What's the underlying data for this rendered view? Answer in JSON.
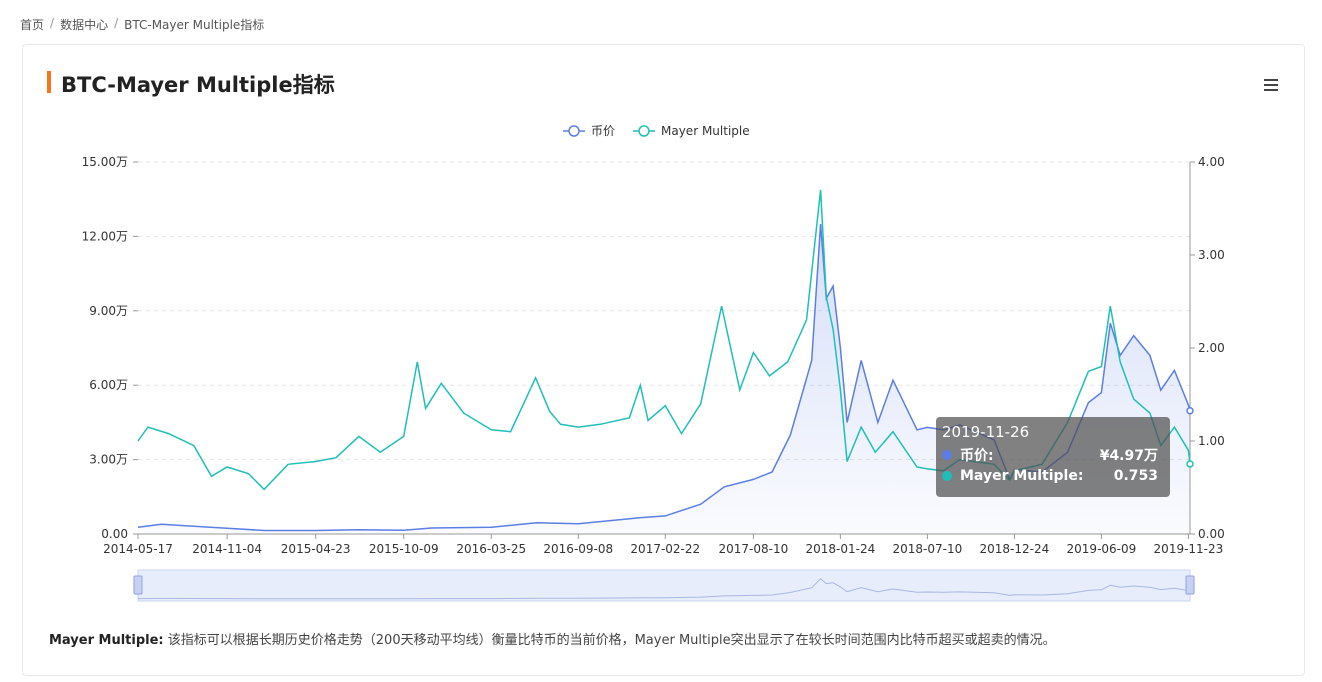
{
  "breadcrumb": {
    "items": [
      "首页",
      "数据中心",
      "BTC-Mayer Multiple指标"
    ],
    "separator": "/"
  },
  "card": {
    "title": "BTC-Mayer Multiple指标",
    "accent_color": "#f7761b",
    "menu_icon": "hamburger-menu-icon"
  },
  "tooltip": {
    "date": "2019-11-26",
    "rows": [
      {
        "label": "币价:",
        "value": "¥4.97万",
        "color": "#5b7ee5"
      },
      {
        "label": "Mayer Multiple:",
        "value": "0.753",
        "color": "#1fbfb8"
      }
    ]
  },
  "description": {
    "label": "Mayer Multiple:",
    "text": "该指标可以根据长期历史价格走势（200天移动平均线）衡量比特币的当前价格，Mayer Multiple突出显示了在较长时间范围内比特币超买或超卖的情况。"
  },
  "chart_data": {
    "type": "line",
    "legend": [
      {
        "name": "币价",
        "color": "#5b7ee5"
      },
      {
        "name": "Mayer Multiple",
        "color": "#1fbfb8"
      }
    ],
    "legend_position": "top-center",
    "grid": true,
    "x_tick_labels": [
      "2014-05-17",
      "2014-11-04",
      "2015-04-23",
      "2015-10-09",
      "2016-03-25",
      "2016-09-08",
      "2017-02-22",
      "2017-08-10",
      "2018-01-24",
      "2018-07-10",
      "2018-12-24",
      "2019-06-09",
      "2019-11-23"
    ],
    "y_left": {
      "ticks": [
        "0.00",
        "3.00万",
        "6.00万",
        "9.00万",
        "12.00万",
        "15.00万"
      ],
      "range": [
        0,
        150000
      ]
    },
    "y_right": {
      "ticks": [
        "0.00",
        "1.00",
        "2.00",
        "3.00",
        "4.00"
      ],
      "range": [
        0,
        4
      ]
    },
    "x_range": [
      "2014-05-17",
      "2019-11-26"
    ],
    "series": [
      {
        "name": "币价",
        "axis": "left",
        "color": "#5b7ee5",
        "area": true,
        "points": [
          [
            "2014-05-17",
            2700
          ],
          [
            "2014-07-01",
            3900
          ],
          [
            "2014-09-01",
            3100
          ],
          [
            "2014-11-04",
            2300
          ],
          [
            "2015-01-15",
            1400
          ],
          [
            "2015-04-23",
            1400
          ],
          [
            "2015-07-15",
            1700
          ],
          [
            "2015-10-09",
            1500
          ],
          [
            "2015-12-01",
            2400
          ],
          [
            "2016-03-25",
            2700
          ],
          [
            "2016-06-20",
            4500
          ],
          [
            "2016-09-08",
            4100
          ],
          [
            "2016-12-31",
            6500
          ],
          [
            "2017-02-22",
            7300
          ],
          [
            "2017-05-01",
            12000
          ],
          [
            "2017-06-15",
            19000
          ],
          [
            "2017-08-10",
            22000
          ],
          [
            "2017-09-15",
            25000
          ],
          [
            "2017-10-20",
            40000
          ],
          [
            "2017-11-30",
            70000
          ],
          [
            "2017-12-17",
            125000
          ],
          [
            "2017-12-28",
            95000
          ],
          [
            "2018-01-10",
            100000
          ],
          [
            "2018-01-24",
            75000
          ],
          [
            "2018-02-06",
            45000
          ],
          [
            "2018-03-05",
            70000
          ],
          [
            "2018-04-06",
            45000
          ],
          [
            "2018-05-05",
            62000
          ],
          [
            "2018-06-20",
            42000
          ],
          [
            "2018-07-10",
            43000
          ],
          [
            "2018-08-10",
            42000
          ],
          [
            "2018-09-10",
            44000
          ],
          [
            "2018-11-15",
            38000
          ],
          [
            "2018-12-15",
            22000
          ],
          [
            "2018-12-24",
            26000
          ],
          [
            "2019-02-15",
            25000
          ],
          [
            "2019-04-05",
            33000
          ],
          [
            "2019-05-15",
            53000
          ],
          [
            "2019-06-09",
            57000
          ],
          [
            "2019-06-26",
            85000
          ],
          [
            "2019-07-15",
            72000
          ],
          [
            "2019-08-10",
            80000
          ],
          [
            "2019-09-10",
            72000
          ],
          [
            "2019-10-01",
            58000
          ],
          [
            "2019-10-27",
            66000
          ],
          [
            "2019-11-23",
            52000
          ],
          [
            "2019-11-26",
            49700
          ]
        ]
      },
      {
        "name": "Mayer Multiple",
        "axis": "right",
        "color": "#1fbfb8",
        "area": false,
        "points": [
          [
            "2014-05-17",
            1.0
          ],
          [
            "2014-06-05",
            1.15
          ],
          [
            "2014-07-15",
            1.08
          ],
          [
            "2014-09-01",
            0.95
          ],
          [
            "2014-10-05",
            0.62
          ],
          [
            "2014-11-04",
            0.72
          ],
          [
            "2014-12-15",
            0.65
          ],
          [
            "2015-01-14",
            0.48
          ],
          [
            "2015-03-01",
            0.75
          ],
          [
            "2015-04-23",
            0.78
          ],
          [
            "2015-06-01",
            0.82
          ],
          [
            "2015-07-15",
            1.05
          ],
          [
            "2015-08-25",
            0.88
          ],
          [
            "2015-10-09",
            1.05
          ],
          [
            "2015-11-04",
            1.85
          ],
          [
            "2015-11-20",
            1.35
          ],
          [
            "2015-12-20",
            1.62
          ],
          [
            "2016-02-01",
            1.3
          ],
          [
            "2016-03-25",
            1.12
          ],
          [
            "2016-05-01",
            1.1
          ],
          [
            "2016-06-18",
            1.68
          ],
          [
            "2016-07-15",
            1.32
          ],
          [
            "2016-08-05",
            1.18
          ],
          [
            "2016-09-08",
            1.15
          ],
          [
            "2016-10-20",
            1.18
          ],
          [
            "2016-12-15",
            1.25
          ],
          [
            "2017-01-05",
            1.6
          ],
          [
            "2017-01-20",
            1.22
          ],
          [
            "2017-02-22",
            1.38
          ],
          [
            "2017-03-25",
            1.08
          ],
          [
            "2017-05-01",
            1.4
          ],
          [
            "2017-06-10",
            2.45
          ],
          [
            "2017-07-15",
            1.55
          ],
          [
            "2017-08-10",
            1.95
          ],
          [
            "2017-09-10",
            1.7
          ],
          [
            "2017-10-15",
            1.85
          ],
          [
            "2017-11-20",
            2.3
          ],
          [
            "2017-12-17",
            3.7
          ],
          [
            "2017-12-28",
            2.55
          ],
          [
            "2018-01-10",
            2.2
          ],
          [
            "2018-01-24",
            1.55
          ],
          [
            "2018-02-06",
            0.78
          ],
          [
            "2018-03-05",
            1.15
          ],
          [
            "2018-04-01",
            0.88
          ],
          [
            "2018-05-05",
            1.1
          ],
          [
            "2018-06-20",
            0.72
          ],
          [
            "2018-07-10",
            0.7
          ],
          [
            "2018-08-10",
            0.68
          ],
          [
            "2018-09-10",
            0.8
          ],
          [
            "2018-11-15",
            0.75
          ],
          [
            "2018-12-15",
            0.58
          ],
          [
            "2018-12-24",
            0.68
          ],
          [
            "2019-02-15",
            0.75
          ],
          [
            "2019-04-05",
            1.2
          ],
          [
            "2019-05-15",
            1.75
          ],
          [
            "2019-06-09",
            1.8
          ],
          [
            "2019-06-26",
            2.45
          ],
          [
            "2019-07-15",
            1.85
          ],
          [
            "2019-08-10",
            1.45
          ],
          [
            "2019-09-10",
            1.3
          ],
          [
            "2019-10-01",
            0.95
          ],
          [
            "2019-10-27",
            1.15
          ],
          [
            "2019-11-23",
            0.9
          ],
          [
            "2019-11-26",
            0.753
          ]
        ]
      }
    ]
  }
}
